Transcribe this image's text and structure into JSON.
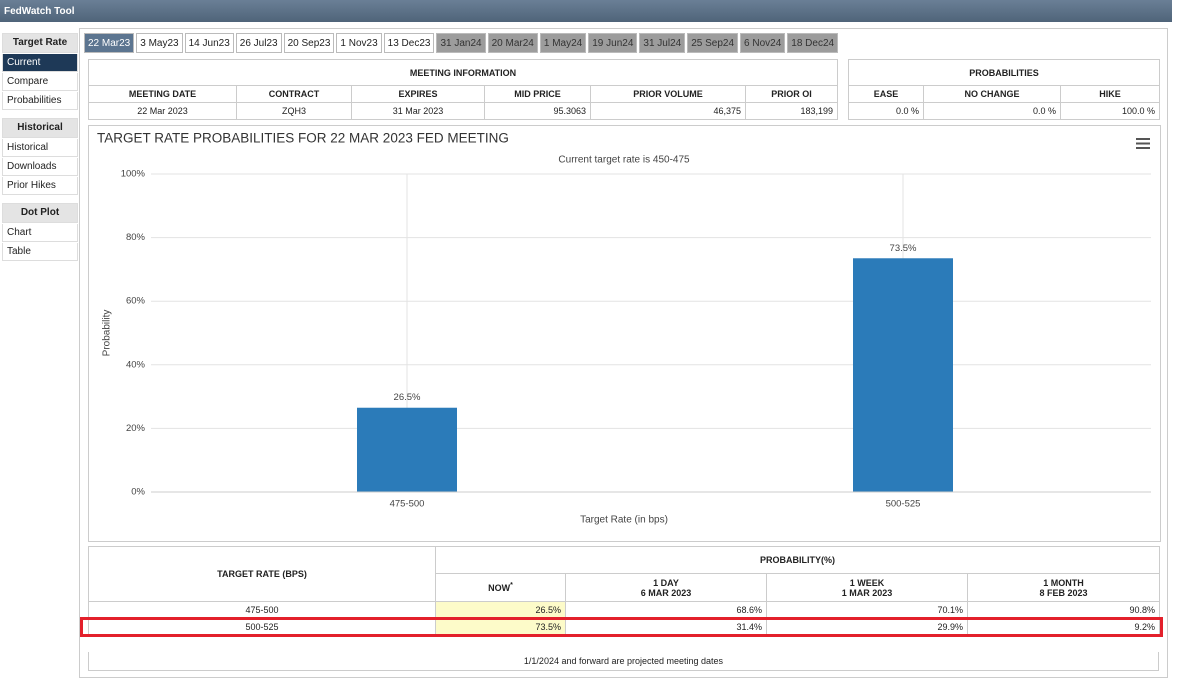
{
  "app": {
    "title": "FedWatch Tool"
  },
  "sidebar": [
    {
      "header": "Target Rate",
      "items": [
        "Current",
        "Compare",
        "Probabilities"
      ]
    },
    {
      "header": "Historical",
      "items": [
        "Historical",
        "Downloads",
        "Prior Hikes"
      ]
    },
    {
      "header": "Dot Plot",
      "items": [
        "Chart",
        "Table"
      ]
    }
  ],
  "tabs": [
    "22 Mar23",
    "3 May23",
    "14 Jun23",
    "26 Jul23",
    "20 Sep23",
    "1 Nov23",
    "13 Dec23",
    "31 Jan24",
    "20 Mar24",
    "1 May24",
    "19 Jun24",
    "31 Jul24",
    "25 Sep24",
    "6 Nov24",
    "18 Dec24"
  ],
  "meeting_info": {
    "title": "MEETING INFORMATION",
    "columns": [
      "MEETING DATE",
      "CONTRACT",
      "EXPIRES",
      "MID PRICE",
      "PRIOR VOLUME",
      "PRIOR OI"
    ],
    "values": [
      "22 Mar 2023",
      "ZQH3",
      "31 Mar 2023",
      "95.3063",
      "46,375",
      "183,199"
    ]
  },
  "probabilities": {
    "title": "PROBABILITIES",
    "columns": [
      "EASE",
      "NO CHANGE",
      "HIKE"
    ],
    "values": [
      "0.0 %",
      "0.0 %",
      "100.0 %"
    ]
  },
  "chart_data": {
    "type": "bar",
    "title": "TARGET RATE PROBABILITIES FOR 22 MAR 2023 FED MEETING",
    "subtitle": "Current target rate is 450-475",
    "x_label": "Target Rate (in bps)",
    "y_label": "Probability",
    "categories": [
      "475-500",
      "500-525"
    ],
    "values": [
      26.5,
      73.5
    ],
    "value_labels": [
      "26.5%",
      "73.5%"
    ],
    "color": "#2b7bb9",
    "ylim": [
      0,
      100
    ],
    "yticks": [
      {
        "value": 0,
        "label": "0%"
      },
      {
        "value": 20,
        "label": "20%"
      },
      {
        "value": 40,
        "label": "40%"
      },
      {
        "value": 60,
        "label": "60%"
      },
      {
        "value": 80,
        "label": "80%"
      },
      {
        "value": 100,
        "label": "100%"
      }
    ],
    "grid": true
  },
  "probability_table": {
    "row_header": "TARGET RATE (BPS)",
    "group_header": "PROBABILITY(%)",
    "columns": [
      {
        "label": "NOW",
        "note": "*"
      },
      {
        "label": "1 DAY",
        "date": "6 MAR 2023"
      },
      {
        "label": "1 WEEK",
        "date": "1 MAR 2023"
      },
      {
        "label": "1 MONTH",
        "date": "8 FEB 2023"
      }
    ],
    "rows": [
      [
        "475-500",
        "26.5%",
        "68.6%",
        "70.1%",
        "90.8%"
      ],
      [
        "500-525",
        "73.5%",
        "31.4%",
        "29.9%",
        "9.2%"
      ]
    ]
  },
  "footer": "1/1/2024 and forward are projected meeting dates"
}
